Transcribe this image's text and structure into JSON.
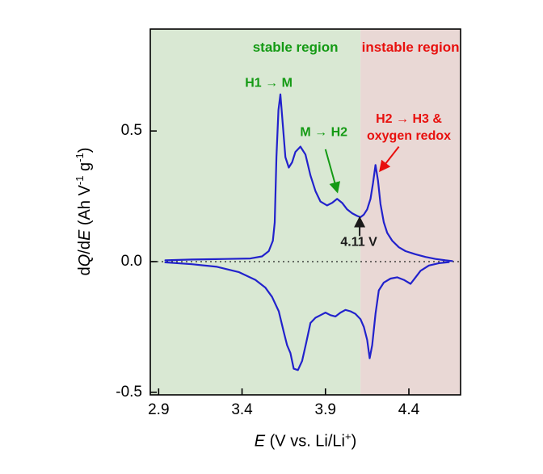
{
  "figure": {
    "x_axis_label": {
      "p1": "E",
      "p2": " (V vs. Li/Li",
      "sup": "+",
      "p3": ")"
    },
    "y_axis_label": {
      "p1": "d",
      "p2": "Q",
      "p3": "/d",
      "p4": "E",
      "p5": " (Ah V",
      "sup1": "-1",
      "p6": " g",
      "sup2": "-1",
      "p7": ")"
    }
  },
  "chart_data": {
    "type": "line",
    "title": "",
    "xlabel": "E (V vs. Li/Li+)",
    "ylabel": "dQ/dE (Ah V-1 g-1)",
    "xlim": [
      2.85,
      4.71
    ],
    "ylim": [
      -0.51,
      0.89
    ],
    "grid": false,
    "legend": "none",
    "x_ticks": [
      "2.9",
      "3.4",
      "3.9",
      "4.4"
    ],
    "y_ticks": [
      "0.5",
      "0.0",
      "-0.5"
    ],
    "curve_color": "#2222cc",
    "regions": [
      {
        "name": "stable-region",
        "label": "stable region",
        "x_start": 2.85,
        "x_end": 4.11,
        "fill": "#d9e8d3",
        "label_color": "#149a14",
        "label_x": 3.72,
        "label_y": 0.82
      },
      {
        "name": "instable-region",
        "label": "instable region",
        "x_start": 4.11,
        "x_end": 4.71,
        "fill": "#e9d8d5",
        "label_color": "#e8100e",
        "label_x": 4.41,
        "label_y": 0.82
      }
    ],
    "zero_line": {
      "y": 0.0,
      "style": "dotted"
    },
    "series": [
      {
        "name": "charge",
        "color": "#2222cc",
        "points": [
          [
            2.94,
            0.005
          ],
          [
            3.1,
            0.008
          ],
          [
            3.3,
            0.01
          ],
          [
            3.45,
            0.012
          ],
          [
            3.52,
            0.02
          ],
          [
            3.56,
            0.04
          ],
          [
            3.585,
            0.08
          ],
          [
            3.596,
            0.15
          ],
          [
            3.606,
            0.4
          ],
          [
            3.618,
            0.58
          ],
          [
            3.63,
            0.64
          ],
          [
            3.645,
            0.52
          ],
          [
            3.66,
            0.4
          ],
          [
            3.68,
            0.36
          ],
          [
            3.7,
            0.38
          ],
          [
            3.72,
            0.42
          ],
          [
            3.75,
            0.44
          ],
          [
            3.78,
            0.41
          ],
          [
            3.81,
            0.33
          ],
          [
            3.84,
            0.27
          ],
          [
            3.87,
            0.23
          ],
          [
            3.91,
            0.215
          ],
          [
            3.94,
            0.225
          ],
          [
            3.97,
            0.24
          ],
          [
            4.0,
            0.225
          ],
          [
            4.03,
            0.2
          ],
          [
            4.06,
            0.185
          ],
          [
            4.09,
            0.175
          ],
          [
            4.11,
            0.17
          ],
          [
            4.13,
            0.18
          ],
          [
            4.15,
            0.2
          ],
          [
            4.17,
            0.24
          ],
          [
            4.185,
            0.3
          ],
          [
            4.2,
            0.37
          ],
          [
            4.215,
            0.31
          ],
          [
            4.23,
            0.22
          ],
          [
            4.25,
            0.15
          ],
          [
            4.27,
            0.11
          ],
          [
            4.3,
            0.08
          ],
          [
            4.34,
            0.055
          ],
          [
            4.38,
            0.04
          ],
          [
            4.44,
            0.028
          ],
          [
            4.5,
            0.018
          ],
          [
            4.56,
            0.01
          ],
          [
            4.62,
            0.005
          ],
          [
            4.66,
            0.002
          ]
        ]
      },
      {
        "name": "discharge",
        "color": "#2222cc",
        "points": [
          [
            2.94,
            -0.003
          ],
          [
            3.1,
            -0.01
          ],
          [
            3.25,
            -0.02
          ],
          [
            3.38,
            -0.04
          ],
          [
            3.48,
            -0.07
          ],
          [
            3.54,
            -0.1
          ],
          [
            3.58,
            -0.135
          ],
          [
            3.62,
            -0.19
          ],
          [
            3.65,
            -0.27
          ],
          [
            3.67,
            -0.32
          ],
          [
            3.69,
            -0.35
          ],
          [
            3.71,
            -0.41
          ],
          [
            3.735,
            -0.415
          ],
          [
            3.76,
            -0.38
          ],
          [
            3.785,
            -0.31
          ],
          [
            3.81,
            -0.235
          ],
          [
            3.84,
            -0.215
          ],
          [
            3.87,
            -0.205
          ],
          [
            3.9,
            -0.195
          ],
          [
            3.93,
            -0.205
          ],
          [
            3.96,
            -0.21
          ],
          [
            3.99,
            -0.195
          ],
          [
            4.02,
            -0.185
          ],
          [
            4.05,
            -0.19
          ],
          [
            4.08,
            -0.2
          ],
          [
            4.11,
            -0.22
          ],
          [
            4.13,
            -0.25
          ],
          [
            4.15,
            -0.3
          ],
          [
            4.165,
            -0.37
          ],
          [
            4.18,
            -0.32
          ],
          [
            4.2,
            -0.2
          ],
          [
            4.22,
            -0.11
          ],
          [
            4.25,
            -0.08
          ],
          [
            4.29,
            -0.065
          ],
          [
            4.33,
            -0.06
          ],
          [
            4.37,
            -0.07
          ],
          [
            4.41,
            -0.085
          ],
          [
            4.44,
            -0.06
          ],
          [
            4.47,
            -0.035
          ],
          [
            4.52,
            -0.015
          ],
          [
            4.58,
            -0.006
          ],
          [
            4.64,
            -0.002
          ]
        ]
      }
    ],
    "annotations": [
      {
        "text": "H1 → M",
        "color": "#149a14",
        "x": 3.56,
        "y": 0.68
      },
      {
        "text": "M → H2",
        "color": "#149a14",
        "x": 3.89,
        "y": 0.49,
        "arrow": {
          "from": [
            3.9,
            0.43
          ],
          "to": [
            3.97,
            0.27
          ]
        }
      },
      {
        "text": "H2 → H3 &\noxygen redox",
        "color": "#e8100e",
        "x": 4.4,
        "y": 0.51,
        "arrow": {
          "from": [
            4.34,
            0.44
          ],
          "to": [
            4.23,
            0.35
          ]
        }
      },
      {
        "text": "4.11 V",
        "color": "#1a1a1a",
        "x": 4.1,
        "y": 0.07,
        "arrow": {
          "from": [
            4.105,
            0.098
          ],
          "to": [
            4.105,
            0.165
          ]
        }
      }
    ]
  }
}
